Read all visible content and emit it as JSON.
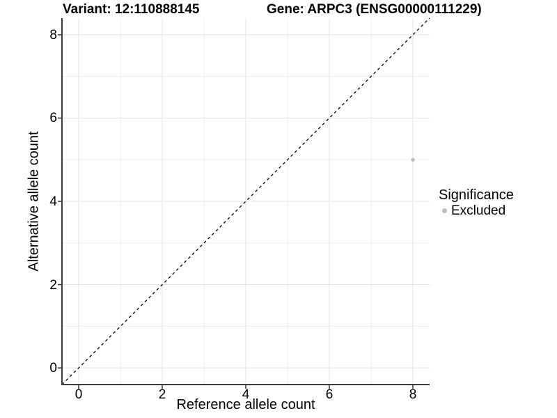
{
  "chart_data": {
    "type": "scatter",
    "title_left": "Variant: 12:110888145",
    "title_right": "Gene: ARPC3 (ENSG00000111229)",
    "xlabel": "Reference allele count",
    "ylabel": "Alternative allele count",
    "xlim": [
      -0.4,
      8.4
    ],
    "ylim": [
      -0.4,
      8.4
    ],
    "xticks": [
      0,
      2,
      4,
      6,
      8
    ],
    "yticks": [
      0,
      2,
      4,
      6,
      8
    ],
    "xminor": [
      1,
      3,
      5,
      7
    ],
    "yminor": [
      1,
      3,
      5,
      7
    ],
    "grid": "on",
    "legend": {
      "title": "Significance",
      "position": "right",
      "items": [
        {
          "label": "Excluded",
          "color": "#bcbcbc"
        }
      ]
    },
    "series": [
      {
        "name": "Excluded",
        "color": "#bcbcbc",
        "points": [
          {
            "x": 8,
            "y": 5
          }
        ]
      }
    ],
    "identity_line": {
      "style": "dashed",
      "color": "#000000",
      "from": -0.4,
      "to": 8.4
    },
    "colors": {
      "background": "#ffffff",
      "grid_major": "#e3e3e3",
      "grid_minor": "#eeeeee",
      "axis_line": "#3c3c3c",
      "tick_mark": "#333333"
    }
  }
}
